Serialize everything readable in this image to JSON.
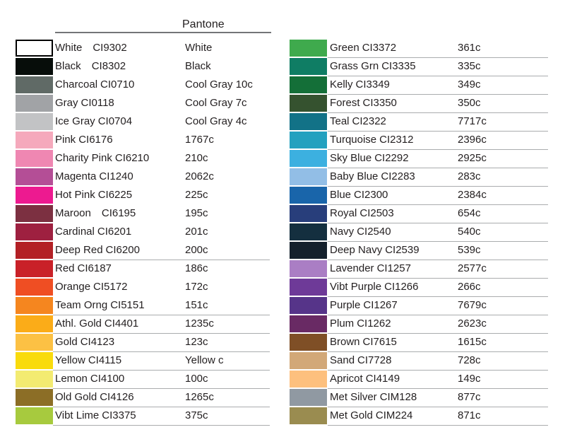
{
  "header": {
    "pantone_label": "Pantone"
  },
  "colors": {
    "text": "#231f20",
    "row_divider": "#aaacae",
    "header_rule": "#737578",
    "background": "#ffffff"
  },
  "columns": {
    "left": {
      "rows": [
        {
          "name": "White",
          "code": "CI9302",
          "pantone": "White",
          "swatch": "#ffffff",
          "swatch_border": true,
          "wide_gap": true,
          "underline": false
        },
        {
          "name": "Black",
          "code": "CI8302",
          "pantone": "Black",
          "swatch": "#070d0a",
          "swatch_border": false,
          "wide_gap": true,
          "underline": false
        },
        {
          "name": "Charcoal",
          "code": "CI0710",
          "pantone": "Cool Gray 10c",
          "swatch": "#606a66",
          "swatch_border": false,
          "wide_gap": false,
          "underline": false
        },
        {
          "name": "Gray",
          "code": "CI0118",
          "pantone": "Cool Gray 7c",
          "swatch": "#a1a3a6",
          "swatch_border": false,
          "wide_gap": false,
          "underline": false
        },
        {
          "name": "Ice Gray",
          "code": "CI0704",
          "pantone": "Cool Gray 4c",
          "swatch": "#c2c3c5",
          "swatch_border": false,
          "wide_gap": false,
          "underline": false
        },
        {
          "name": "Pink",
          "code": "CI6176",
          "pantone": "1767c",
          "swatch": "#f5a9bc",
          "swatch_border": false,
          "wide_gap": false,
          "underline": false
        },
        {
          "name": "Charity Pink",
          "code": "CI6210",
          "pantone": "210c",
          "swatch": "#ef87b2",
          "swatch_border": false,
          "wide_gap": false,
          "underline": false
        },
        {
          "name": "Magenta",
          "code": "CI1240",
          "pantone": "2062c",
          "swatch": "#b44e96",
          "swatch_border": false,
          "wide_gap": false,
          "underline": false
        },
        {
          "name": "Hot Pink",
          "code": "CI6225",
          "pantone": "225c",
          "swatch": "#ed1a90",
          "swatch_border": false,
          "wide_gap": false,
          "underline": false
        },
        {
          "name": "Maroon",
          "code": "CI6195",
          "pantone": "195c",
          "swatch": "#7c3041",
          "swatch_border": false,
          "wide_gap": true,
          "underline": false
        },
        {
          "name": "Cardinal",
          "code": "CI6201",
          "pantone": "201c",
          "swatch": "#9e2040",
          "swatch_border": false,
          "wide_gap": false,
          "underline": false
        },
        {
          "name": "Deep Red",
          "code": "CI6200",
          "pantone": "200c",
          "swatch": "#b32025",
          "swatch_border": false,
          "wide_gap": false,
          "underline": true
        },
        {
          "name": "Red",
          "code": "CI6187",
          "pantone": "186c",
          "swatch": "#c92128",
          "swatch_border": false,
          "wide_gap": false,
          "underline": false
        },
        {
          "name": "Orange",
          "code": "CI5172",
          "pantone": "172c",
          "swatch": "#ef4e23",
          "swatch_border": false,
          "wide_gap": false,
          "underline": false
        },
        {
          "name": "Team Orng",
          "code": "CI5151",
          "pantone": "151c",
          "swatch": "#f5861f",
          "swatch_border": false,
          "wide_gap": false,
          "underline": true
        },
        {
          "name": "Athl. Gold",
          "code": "CI4401",
          "pantone": "1235c",
          "swatch": "#fbac18",
          "swatch_border": false,
          "wide_gap": false,
          "underline": true
        },
        {
          "name": "Gold",
          "code": "CI4123",
          "pantone": "123c",
          "swatch": "#fcc144",
          "swatch_border": false,
          "wide_gap": false,
          "underline": true
        },
        {
          "name": "Yellow",
          "code": "CI4115",
          "pantone": "Yellow c",
          "swatch": "#f9db0c",
          "swatch_border": false,
          "wide_gap": false,
          "underline": true
        },
        {
          "name": "Lemon",
          "code": "CI4100",
          "pantone": "100c",
          "swatch": "#f3eb71",
          "swatch_border": false,
          "wide_gap": false,
          "underline": true
        },
        {
          "name": "Old Gold",
          "code": "CI4126",
          "pantone": "1265c",
          "swatch": "#8c6e26",
          "swatch_border": false,
          "wide_gap": false,
          "underline": true
        },
        {
          "name": "Vibt Lime",
          "code": "CI3375",
          "pantone": "375c",
          "swatch": "#a7ca3e",
          "swatch_border": false,
          "wide_gap": false,
          "underline": true
        }
      ]
    },
    "right": {
      "rows": [
        {
          "name": "Green",
          "code": "CI3372",
          "pantone": "361c",
          "swatch": "#3faa4d",
          "swatch_border": false,
          "wide_gap": false,
          "underline": true
        },
        {
          "name": "Grass Grn",
          "code": "CI3335",
          "pantone": "335c",
          "swatch": "#0f7d64",
          "swatch_border": false,
          "wide_gap": false,
          "underline": true
        },
        {
          "name": "Kelly",
          "code": "CI3349",
          "pantone": "349c",
          "swatch": "#146f38",
          "swatch_border": false,
          "wide_gap": false,
          "underline": true
        },
        {
          "name": "Forest",
          "code": "CI3350",
          "pantone": "350c",
          "swatch": "#35522f",
          "swatch_border": false,
          "wide_gap": false,
          "underline": true
        },
        {
          "name": "Teal",
          "code": "CI2322",
          "pantone": "7717c",
          "swatch": "#127287",
          "swatch_border": false,
          "wide_gap": false,
          "underline": true
        },
        {
          "name": "Turquoise",
          "code": "CI2312",
          "pantone": "2396c",
          "swatch": "#23a1bf",
          "swatch_border": false,
          "wide_gap": false,
          "underline": true
        },
        {
          "name": "Sky Blue",
          "code": "CI2292",
          "pantone": "2925c",
          "swatch": "#3cb0e0",
          "swatch_border": false,
          "wide_gap": false,
          "underline": true
        },
        {
          "name": "Baby Blue",
          "code": "CI2283",
          "pantone": "283c",
          "swatch": "#92bee6",
          "swatch_border": false,
          "wide_gap": false,
          "underline": true
        },
        {
          "name": "Blue",
          "code": "CI2300",
          "pantone": "2384c",
          "swatch": "#1965aa",
          "swatch_border": false,
          "wide_gap": false,
          "underline": true
        },
        {
          "name": "Royal",
          "code": "CI2503",
          "pantone": "654c",
          "swatch": "#283e7b",
          "swatch_border": false,
          "wide_gap": false,
          "underline": true
        },
        {
          "name": "Navy",
          "code": "CI2540",
          "pantone": "540c",
          "swatch": "#142f3f",
          "swatch_border": false,
          "wide_gap": false,
          "underline": true
        },
        {
          "name": "Deep Navy",
          "code": "CI2539",
          "pantone": "539c",
          "swatch": "#14202c",
          "swatch_border": false,
          "wide_gap": false,
          "underline": true
        },
        {
          "name": "Lavender",
          "code": "CI1257",
          "pantone": "2577c",
          "swatch": "#aa7ec4",
          "swatch_border": false,
          "wide_gap": false,
          "underline": true
        },
        {
          "name": "Vibt Purple",
          "code": "CI1266",
          "pantone": "266c",
          "swatch": "#6e3a98",
          "swatch_border": false,
          "wide_gap": false,
          "underline": true
        },
        {
          "name": "Purple",
          "code": "CI1267",
          "pantone": "7679c",
          "swatch": "#563489",
          "swatch_border": false,
          "wide_gap": false,
          "underline": true
        },
        {
          "name": "Plum",
          "code": "CI1262",
          "pantone": "2623c",
          "swatch": "#692a64",
          "swatch_border": false,
          "wide_gap": false,
          "underline": true
        },
        {
          "name": "Brown",
          "code": "CI7615",
          "pantone": "1615c",
          "swatch": "#7f4f26",
          "swatch_border": false,
          "wide_gap": false,
          "underline": true
        },
        {
          "name": "Sand",
          "code": "CI7728",
          "pantone": "728c",
          "swatch": "#d2a878",
          "swatch_border": false,
          "wide_gap": false,
          "underline": true
        },
        {
          "name": "Apricot",
          "code": "CI4149",
          "pantone": "149c",
          "swatch": "#fdc07e",
          "swatch_border": false,
          "wide_gap": false,
          "underline": true
        },
        {
          "name": "Met Silver",
          "code": "CIM128",
          "pantone": "877c",
          "swatch": "#9099a2",
          "swatch_border": false,
          "wide_gap": false,
          "underline": true
        },
        {
          "name": "Met Gold",
          "code": "CIM224",
          "pantone": "871c",
          "swatch": "#9a8c50",
          "swatch_border": false,
          "wide_gap": false,
          "underline": true
        }
      ]
    }
  }
}
